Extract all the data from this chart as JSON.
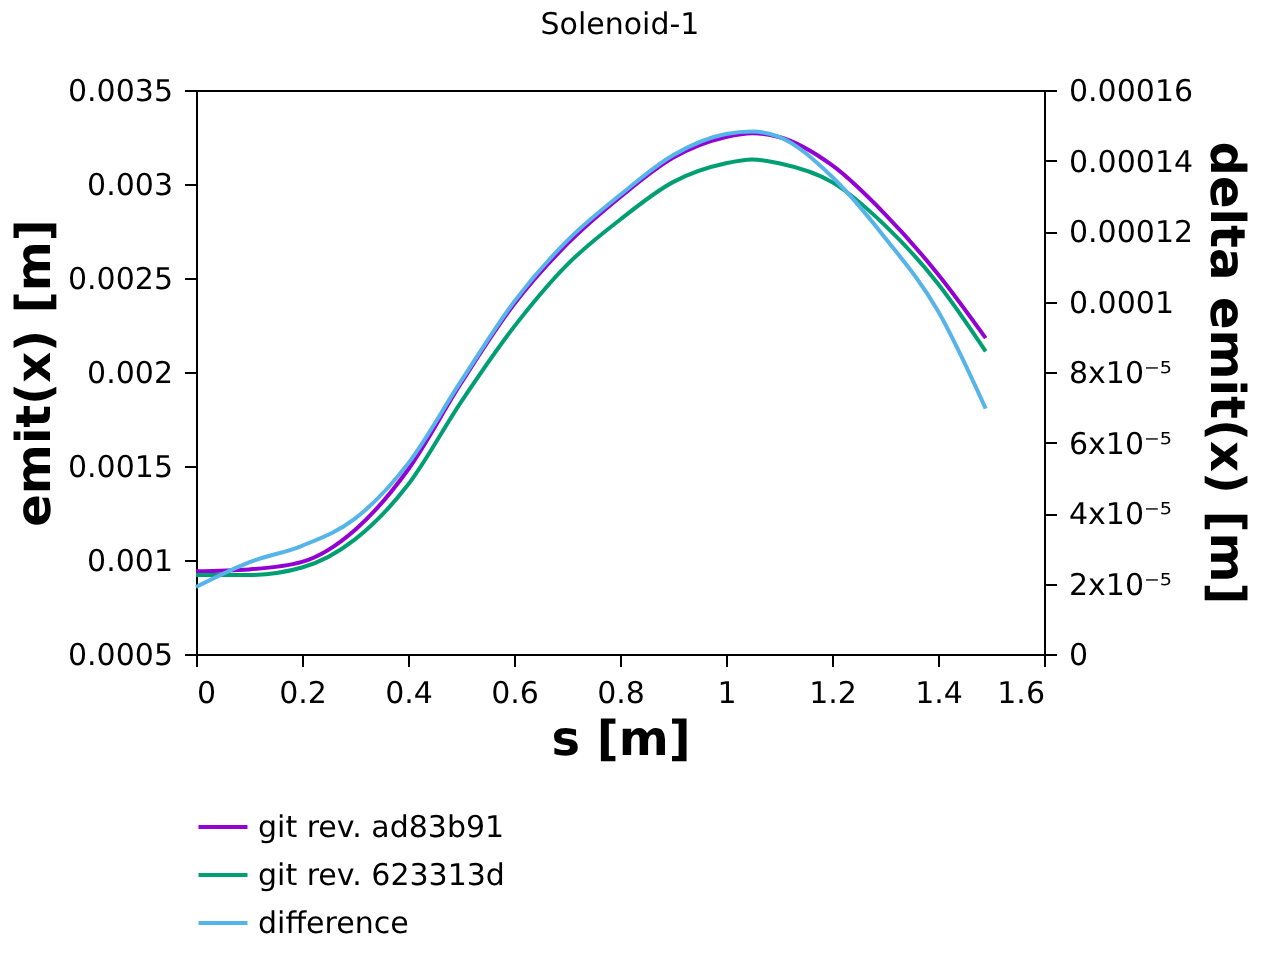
{
  "chart_data": {
    "type": "line",
    "title": "Solenoid-1",
    "xlabel": "s [m]",
    "ylabel": "emit(x) [m]",
    "y2label": "delta emit(x) [m]",
    "x": [
      0,
      0.1,
      0.2,
      0.3,
      0.4,
      0.5,
      0.6,
      0.7,
      0.8,
      0.9,
      1.0,
      1.05,
      1.1,
      1.2,
      1.3,
      1.4,
      1.49
    ],
    "series": [
      {
        "name": "git rev. ad83b91",
        "color": "#9400d3",
        "values": [
          0.00094,
          0.00095,
          0.00099,
          0.00116,
          0.00148,
          0.00194,
          0.00236,
          0.00268,
          0.00293,
          0.00314,
          0.00325,
          0.00327,
          0.00325,
          0.0031,
          0.00284,
          0.00252,
          0.00218
        ]
      },
      {
        "name": "git rev. 623313d",
        "color": "#009e73",
        "values": [
          0.00092,
          0.00092,
          0.00096,
          0.00111,
          0.0014,
          0.00184,
          0.00224,
          0.00257,
          0.00281,
          0.00301,
          0.00311,
          0.00313,
          0.00311,
          0.00301,
          0.00278,
          0.00247,
          0.00211
        ]
      },
      {
        "name": "difference",
        "color": "#56b4e9",
        "axis": "y2",
        "values": [
          1.9e-05,
          2.6e-05,
          3.07e-05,
          3.84e-05,
          5.4e-05,
          7.74e-05,
          9.99e-05,
          0.0001172,
          0.0001302,
          0.0001415,
          0.0001475,
          0.0001482,
          0.0001467,
          0.0001354,
          0.0001181,
          9.73e-05,
          6.96e-05
        ]
      }
    ],
    "xlim": [
      0,
      1.6
    ],
    "xticks": [
      0,
      0.2,
      0.4,
      0.6,
      0.8,
      1,
      1.2,
      1.4,
      1.6
    ],
    "ylim": [
      0.0005,
      0.0035
    ],
    "yticks": [
      0.0005,
      0.001,
      0.0015,
      0.002,
      0.0025,
      0.003,
      0.0035
    ],
    "y2lim": [
      0,
      0.00016
    ],
    "y2ticks": [
      0,
      {
        "value": 2e-05,
        "label": "2x10⁻⁵"
      },
      {
        "value": 4e-05,
        "label": "4x10⁻⁵"
      },
      {
        "value": 6e-05,
        "label": "6x10⁻⁵"
      },
      {
        "value": 8e-05,
        "label": "8x10⁻⁵"
      },
      0.0001,
      0.00012,
      0.00014,
      0.00016
    ],
    "grid": false,
    "legend": "bottom",
    "marker": "none",
    "line_style": "solid"
  }
}
